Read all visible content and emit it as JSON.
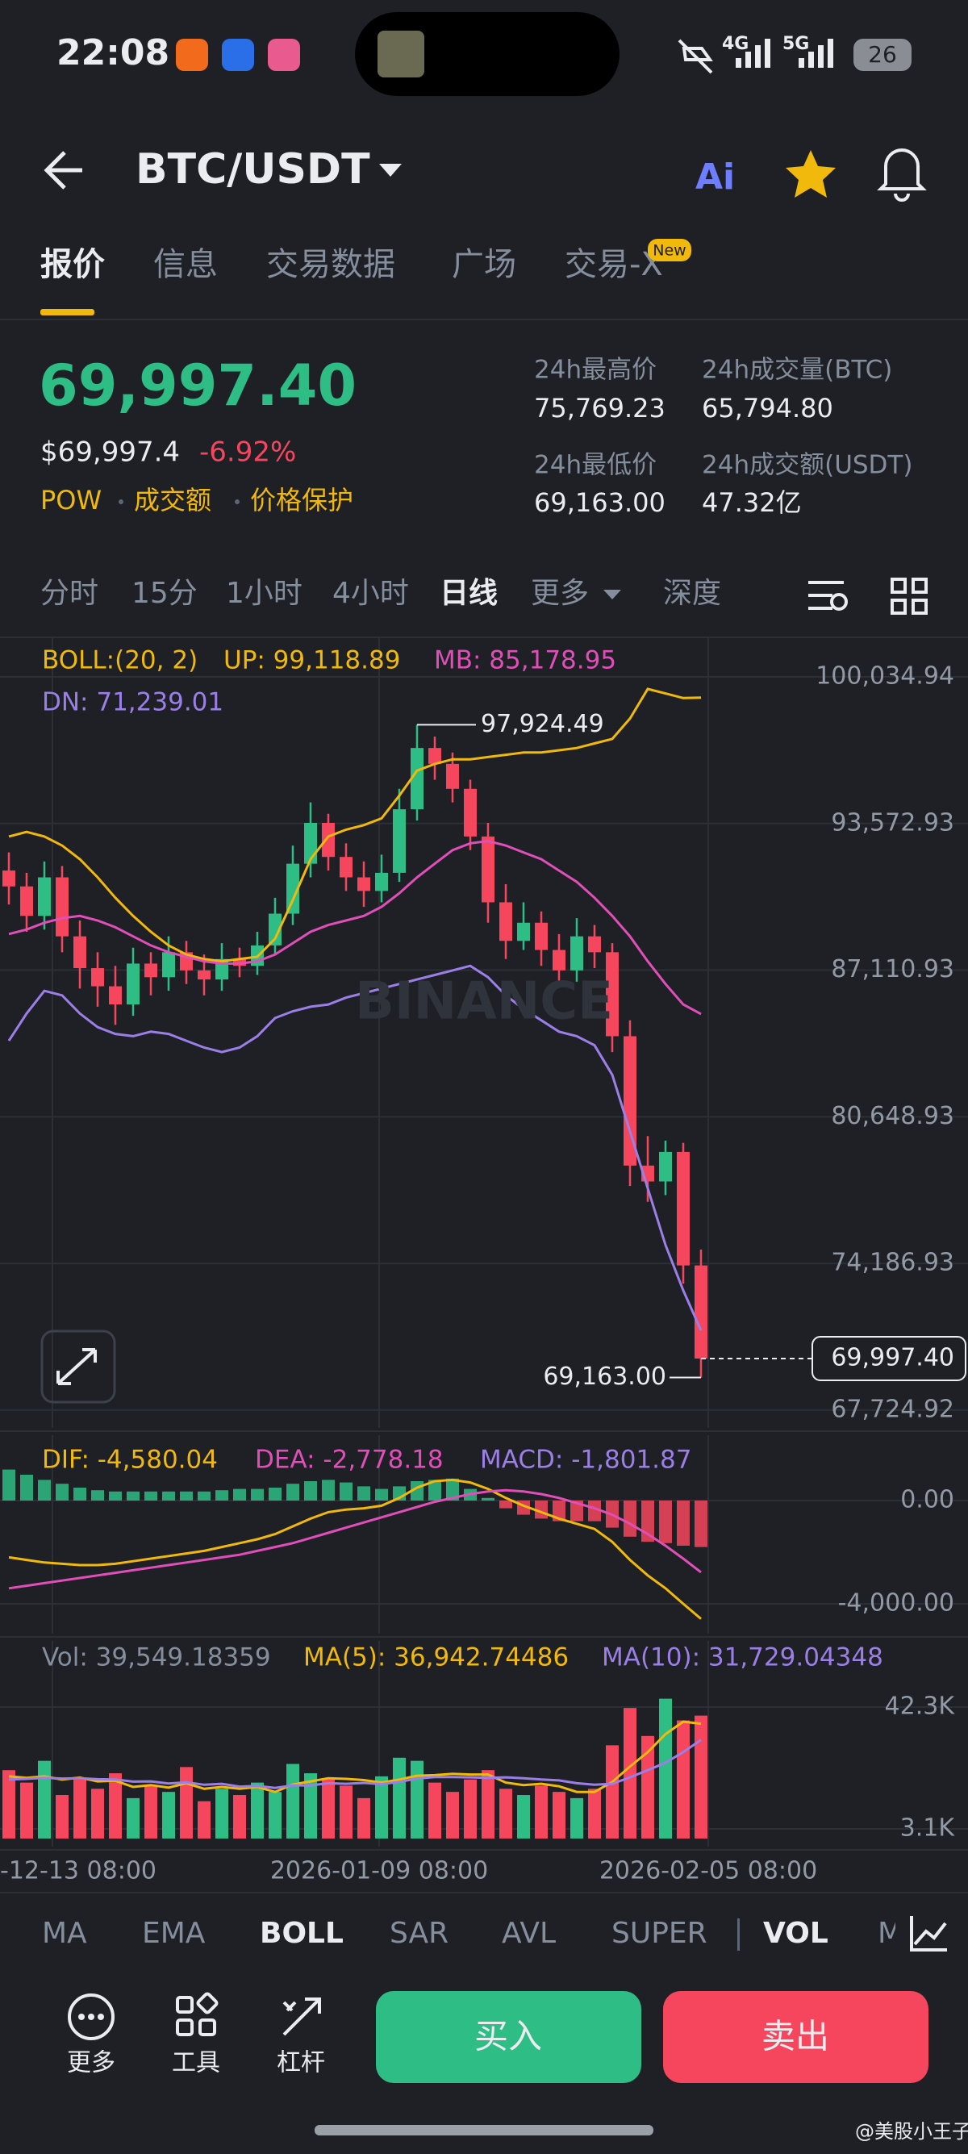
{
  "status_bar": {
    "time": "22:08",
    "network_1": "4G",
    "network_2": "5G",
    "battery": "26"
  },
  "header": {
    "pair": "BTC/USDT",
    "tabs": [
      "报价",
      "信息",
      "交易数据",
      "广场",
      "交易-X"
    ],
    "badge": "New"
  },
  "ticker": {
    "last_price": "69,997.40",
    "usd_price": "$69,997.4",
    "change": "-6.92%",
    "tags": [
      "POW",
      "成交额",
      "价格保护"
    ],
    "stats": [
      {
        "label": "24h最高价",
        "value": "75,769.23"
      },
      {
        "label": "24h成交量(BTC)",
        "value": "65,794.80"
      },
      {
        "label": "24h最低价",
        "value": "69,163.00"
      },
      {
        "label": "24h成交额(USDT)",
        "value": "47.32亿"
      }
    ]
  },
  "intervals": [
    "分时",
    "15分",
    "1小时",
    "4小时",
    "日线",
    "更多",
    "深度"
  ],
  "indicator_tabs": [
    "MA",
    "EMA",
    "BOLL",
    "SAR",
    "AVL",
    "SUPER",
    "VOL",
    "M"
  ],
  "actions": {
    "more": "更多",
    "tools": "工具",
    "leverage": "杠杆",
    "buy": "买入",
    "sell": "卖出"
  },
  "watermark": "BINANCE",
  "credit": "@美股小王子",
  "chart_data": [
    {
      "type": "candlestick",
      "legend_title": "BOLL:(20, 2)",
      "up_color": "#2ebd85",
      "down_color": "#f6465d",
      "open": [
        91500,
        90800,
        89500,
        91200,
        88600,
        87200,
        86400,
        85600,
        87400,
        86800,
        87900,
        87100,
        86700,
        87600,
        87300,
        88200,
        89600,
        91800,
        93600,
        92100,
        91200,
        90600,
        91400,
        94200,
        96900,
        96200,
        95100,
        93000,
        90100,
        88400,
        89200,
        88000,
        87100,
        88600,
        87900,
        84200,
        78500,
        77800,
        79100,
        74100
      ],
      "high": [
        92300,
        91400,
        91900,
        91700,
        89300,
        87900,
        87300,
        88100,
        87900,
        88600,
        88400,
        87800,
        88300,
        88100,
        88800,
        90300,
        92600,
        94500,
        94000,
        92700,
        91900,
        92200,
        95100,
        97924.49,
        97400,
        96700,
        95500,
        93600,
        90900,
        90100,
        89700,
        88700,
        89400,
        89100,
        88300,
        84900,
        79800,
        79600,
        79500,
        74800
      ],
      "low": [
        90000,
        88800,
        88900,
        87900,
        86300,
        85500,
        84700,
        85100,
        86000,
        86200,
        86500,
        86000,
        86200,
        86800,
        86900,
        87800,
        89100,
        91200,
        91500,
        90600,
        89900,
        90100,
        91000,
        93700,
        95500,
        94500,
        92400,
        89200,
        87600,
        88000,
        87300,
        86400,
        86600,
        87200,
        83500,
        77600,
        76900,
        77200,
        73300,
        69163.0
      ],
      "close": [
        90800,
        89500,
        91200,
        88600,
        87200,
        86400,
        85600,
        87400,
        86800,
        87900,
        87100,
        86700,
        87600,
        87300,
        88200,
        89600,
        91800,
        93600,
        92100,
        91200,
        90600,
        91400,
        94200,
        96900,
        96200,
        95100,
        93000,
        90100,
        88400,
        89200,
        88000,
        87100,
        88600,
        87900,
        84200,
        78500,
        77800,
        79100,
        74100,
        69997.4
      ],
      "series": [
        {
          "name": "UP: 99,118.89",
          "color": "#f0b90b",
          "values": [
            93000,
            93200,
            93000,
            92600,
            92000,
            91200,
            90300,
            89500,
            88800,
            88200,
            87800,
            87600,
            87500,
            87600,
            87700,
            88500,
            90200,
            92000,
            93000,
            93300,
            93500,
            93800,
            94800,
            95900,
            96200,
            96400,
            96400,
            96500,
            96600,
            96700,
            96700,
            96800,
            96900,
            97100,
            97300,
            98200,
            99500,
            99300,
            99100,
            99118.89
          ]
        },
        {
          "name": "MB: 85,178.95",
          "color": "#e04fb8",
          "values": [
            88700,
            88900,
            89200,
            89400,
            89500,
            89300,
            89000,
            88600,
            88200,
            87900,
            87700,
            87500,
            87400,
            87400,
            87500,
            87800,
            88300,
            88800,
            89100,
            89300,
            89500,
            89900,
            90500,
            91200,
            91800,
            92400,
            92700,
            92800,
            92600,
            92300,
            92000,
            91500,
            91000,
            90300,
            89500,
            88600,
            87500,
            86500,
            85600,
            85178.95
          ]
        },
        {
          "name": "DN: 71,239.01",
          "color": "#9b7fe6",
          "values": [
            84000,
            85200,
            86200,
            86000,
            85200,
            84600,
            84300,
            84200,
            84400,
            84300,
            84000,
            83700,
            83500,
            83700,
            84200,
            85000,
            85300,
            85500,
            85600,
            85900,
            86100,
            86300,
            86500,
            86700,
            86900,
            87100,
            87300,
            86800,
            86000,
            85400,
            84900,
            84400,
            84200,
            83800,
            82500,
            80000,
            77500,
            75000,
            73000,
            71239.01
          ]
        }
      ],
      "ylim": [
        66940,
        101740
      ],
      "yticks": [
        {
          "value": 100034.94,
          "label": "100,034.94"
        },
        {
          "value": 93572.93,
          "label": "93,572.93"
        },
        {
          "value": 87110.93,
          "label": "87,110.93"
        },
        {
          "value": 80648.93,
          "label": "80,648.93"
        },
        {
          "value": 74186.93,
          "label": "74,186.93"
        },
        {
          "value": 67724.92,
          "label": "67,724.92"
        }
      ],
      "high_label": {
        "value": 97924.49,
        "label": "97,924.49"
      },
      "low_label": {
        "value": 69163.0,
        "label": "69,163.00"
      },
      "last_price": {
        "value": 69997.4,
        "label": "69,997.40"
      }
    },
    {
      "type": "macd",
      "series": [
        {
          "name": "DIF: -4,580.04",
          "color": "#f0b90b",
          "values": [
            -2200,
            -2300,
            -2400,
            -2450,
            -2500,
            -2500,
            -2450,
            -2350,
            -2250,
            -2150,
            -2050,
            -1950,
            -1800,
            -1650,
            -1500,
            -1300,
            -1000,
            -700,
            -450,
            -350,
            -300,
            -200,
            100,
            500,
            750,
            800,
            700,
            450,
            100,
            -200,
            -450,
            -700,
            -900,
            -1100,
            -1600,
            -2300,
            -2900,
            -3400,
            -4000,
            -4580.04
          ]
        },
        {
          "name": "DEA: -2,778.18",
          "color": "#e04fb8",
          "values": [
            -3400,
            -3300,
            -3200,
            -3100,
            -3000,
            -2900,
            -2800,
            -2700,
            -2600,
            -2500,
            -2400,
            -2300,
            -2200,
            -2100,
            -1950,
            -1800,
            -1650,
            -1450,
            -1250,
            -1050,
            -850,
            -650,
            -450,
            -250,
            -50,
            100,
            250,
            350,
            400,
            350,
            250,
            100,
            -100,
            -300,
            -550,
            -900,
            -1300,
            -1750,
            -2250,
            -2778.18
          ]
        },
        {
          "name": "MACD: -1,801.87",
          "color": "#9b7fe6",
          "values": [
            1200,
            1000,
            800,
            650,
            500,
            400,
            350,
            350,
            350,
            350,
            350,
            350,
            400,
            450,
            450,
            500,
            650,
            750,
            800,
            700,
            550,
            450,
            550,
            750,
            800,
            850,
            450,
            100,
            -300,
            -550,
            -700,
            -800,
            -800,
            -800,
            -1050,
            -1400,
            -1600,
            -1650,
            -1750,
            -1801.87
          ]
        }
      ],
      "ylim": [
        -5156,
        2531
      ],
      "yticks": [
        {
          "value": 0,
          "label": "0.00"
        },
        {
          "value": -4000,
          "label": "-4,000.00"
        }
      ]
    },
    {
      "type": "volume",
      "series": [
        {
          "name": "Vol: 39,549.18359",
          "color": "#848e9c",
          "values": [
            22000,
            18000,
            25000,
            14000,
            19000,
            16000,
            21000,
            13000,
            17000,
            15000,
            23000,
            12000,
            16000,
            14000,
            18000,
            15000,
            24000,
            21000,
            19000,
            17000,
            13000,
            20000,
            26000,
            25000,
            18000,
            15000,
            19000,
            22000,
            16000,
            14000,
            17000,
            15000,
            13000,
            16000,
            30000,
            42000,
            33000,
            45000,
            38000,
            39549.18359
          ]
        },
        {
          "name": "MA(5): 36,942.74486",
          "color": "#f0b90b",
          "values": [
            20000,
            19500,
            20000,
            19000,
            19600,
            18400,
            18600,
            16600,
            17200,
            16400,
            17800,
            16000,
            16600,
            16000,
            16600,
            15000,
            17400,
            18400,
            19400,
            19200,
            18800,
            18000,
            19000,
            20200,
            20400,
            20800,
            20600,
            20600,
            18000,
            17200,
            17600,
            16800,
            15000,
            15000,
            18200,
            23200,
            27800,
            33600,
            37600,
            36942.74486
          ]
        },
        {
          "name": "MA(10): 31,729.04348",
          "color": "#9b7fe6",
          "values": [
            19000,
            19200,
            19500,
            19300,
            19400,
            19100,
            19000,
            18300,
            18400,
            17700,
            18100,
            17300,
            17600,
            16700,
            16900,
            16300,
            17100,
            17100,
            17800,
            17600,
            17900,
            17500,
            18200,
            19300,
            19800,
            19800,
            19700,
            19500,
            19700,
            19400,
            19000,
            18700,
            17800,
            17300,
            17600,
            19700,
            22000,
            24400,
            27800,
            31729.04348
          ]
        }
      ],
      "ylim": [
        -2611,
        63587
      ],
      "yticks": [
        {
          "value": 42300,
          "label": "42.3K"
        },
        {
          "value": 3100,
          "label": "3.1K"
        }
      ],
      "x_labels": [
        "-12-13 08:00",
        "2026-01-09 08:00",
        "2026-02-05 08:00"
      ]
    }
  ]
}
